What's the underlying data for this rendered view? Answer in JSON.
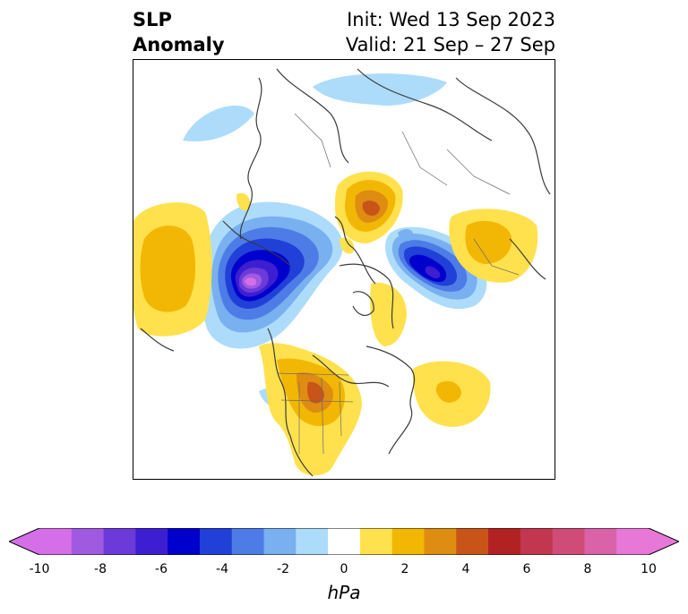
{
  "title": {
    "variable_line1": "SLP",
    "variable_line2": "Anomaly",
    "init": "Init: Wed 13 Sep 2023",
    "valid": "Valid: 21 Sep – 27 Sep"
  },
  "colorbar": {
    "units": "hPa",
    "ticks": [
      "-10",
      "-8",
      "-6",
      "-4",
      "-2",
      "0",
      "2",
      "4",
      "6",
      "8",
      "10"
    ],
    "colors": [
      "#d46fe8",
      "#a05ae0",
      "#6b3ad8",
      "#3d1ed0",
      "#0000cc",
      "#2040d8",
      "#4d7ce6",
      "#78b0f0",
      "#acdcfa",
      "#ffffff",
      "#ffe14d",
      "#f2b705",
      "#de8c12",
      "#c85418",
      "#b22222",
      "#c2364f",
      "#cf4c78",
      "#da62a8",
      "#e878d8"
    ],
    "extend": "both"
  }
}
